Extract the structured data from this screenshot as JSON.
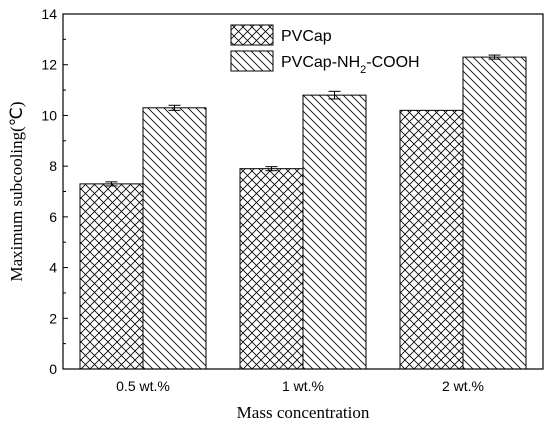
{
  "chart_data": {
    "type": "bar",
    "title": "",
    "xlabel": "Mass concentration",
    "ylabel": "Maximum subcooling(℃)",
    "categories": [
      "0.5 wt.%",
      "1 wt.%",
      "2 wt.%"
    ],
    "ylim": [
      0,
      14
    ],
    "yticks": [
      0,
      2,
      4,
      6,
      8,
      10,
      12,
      14
    ],
    "grid": false,
    "legend_position": "top-center",
    "series": [
      {
        "name": "PVCap",
        "values": [
          7.3,
          7.9,
          10.2
        ],
        "errors": [
          0.08,
          0.08,
          0.0
        ],
        "pattern": "crosshatch"
      },
      {
        "name": "PVCap-NH2-COOH",
        "values": [
          10.3,
          10.8,
          12.3
        ],
        "errors": [
          0.1,
          0.15,
          0.08
        ],
        "pattern": "diagonal"
      }
    ],
    "colors": {
      "bar_fill": "#ffffff",
      "stroke": "#000000"
    }
  }
}
